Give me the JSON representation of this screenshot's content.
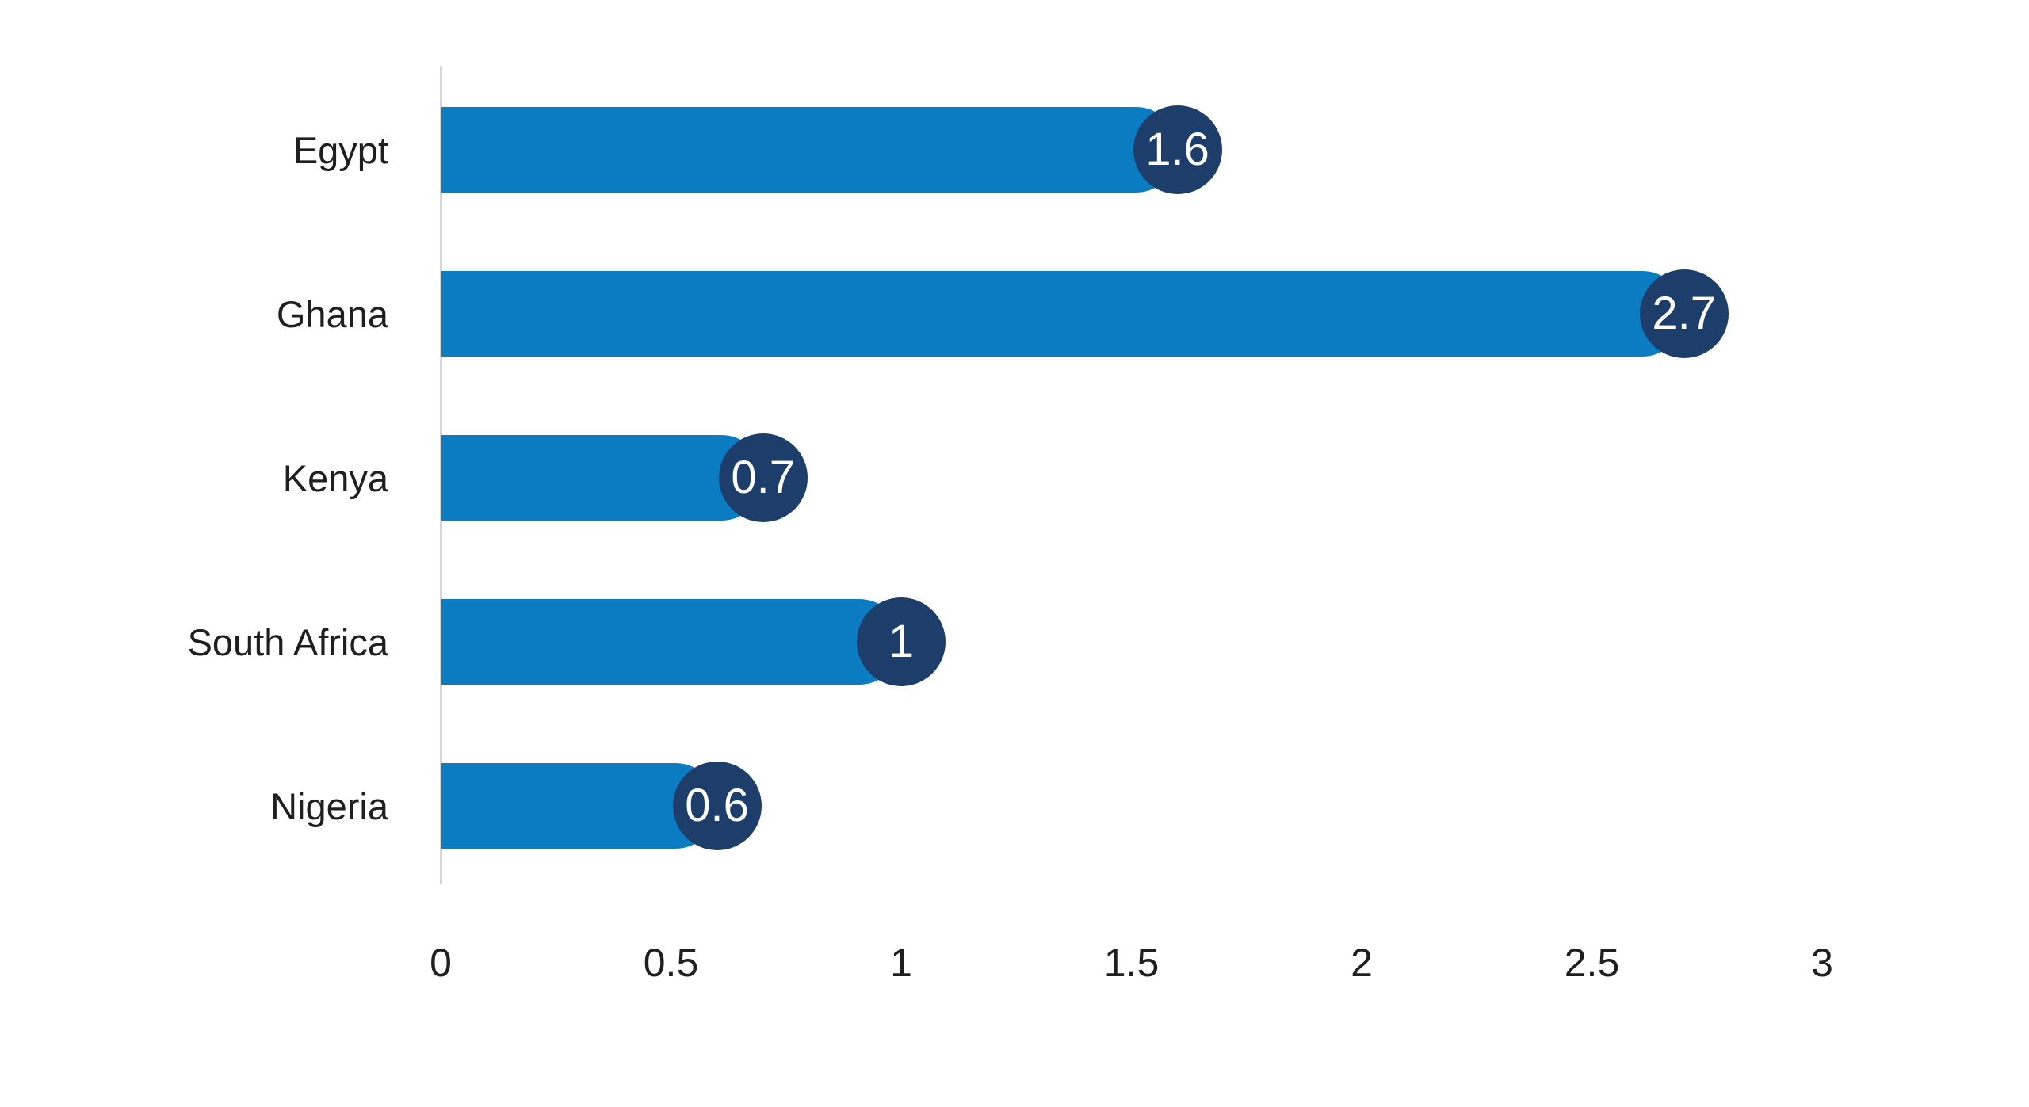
{
  "chart_data": {
    "type": "bar",
    "orientation": "horizontal",
    "title": "",
    "xlabel": "",
    "ylabel": "",
    "categories": [
      "Egypt",
      "Ghana",
      "Kenya",
      "South Africa",
      "Nigeria"
    ],
    "values": [
      1.6,
      2.7,
      0.7,
      1,
      0.6
    ],
    "value_labels": [
      "1.6",
      "2.7",
      "0.7",
      "1",
      "0.6"
    ],
    "x_ticks": [
      0,
      0.5,
      1,
      1.5,
      2,
      2.5,
      3
    ],
    "x_tick_labels": [
      "0",
      "0.5",
      "1",
      "1.5",
      "2",
      "2.5",
      "3"
    ],
    "xlim": [
      0,
      3
    ],
    "grid": false,
    "legend": false,
    "data_label_style": "circle-at-bar-end"
  },
  "colors": {
    "bar": "#0b7cc1",
    "marker_circle": "#1d3e6b",
    "marker_text": "#ffffff",
    "axis_line": "#d6d6d6",
    "text": "#1f1f1f",
    "background": "#ffffff"
  }
}
